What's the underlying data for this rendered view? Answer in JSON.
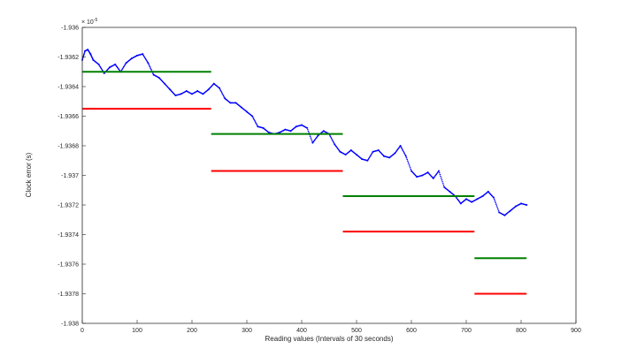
{
  "chart_data": {
    "type": "line",
    "title": "",
    "xlabel": "Reading values (Intervals of 30 seconds)",
    "ylabel": "Clock error (s)",
    "y_exponent_label": "× 10",
    "y_exponent_power": "-5",
    "xlim": [
      0,
      900
    ],
    "ylim": [
      -1.938,
      -1.936
    ],
    "y_multiplier": 1e-05,
    "grid": false,
    "legend": "none",
    "xticks": [
      "0",
      "100",
      "200",
      "300",
      "400",
      "500",
      "600",
      "700",
      "800",
      "900"
    ],
    "yticks": [
      "-1.938",
      "-1.9378",
      "-1.9376",
      "-1.9374",
      "-1.9372",
      "-1.937",
      "-1.9368",
      "-1.9366",
      "-1.9364",
      "-1.9362",
      "-1.936"
    ],
    "series": [
      {
        "style": "dots",
        "color": "#0000ff",
        "x": [
          0,
          5,
          10,
          15,
          20,
          30,
          40,
          50,
          60,
          70,
          80,
          90,
          100,
          110,
          120,
          130,
          140,
          150,
          160,
          170,
          180,
          190,
          200,
          210,
          220,
          230,
          240,
          250,
          260,
          270,
          280,
          290,
          300,
          310,
          320,
          330,
          340,
          350,
          360,
          370,
          380,
          390,
          400,
          410,
          420,
          430,
          440,
          450,
          460,
          470,
          480,
          490,
          500,
          510,
          520,
          530,
          540,
          550,
          560,
          570,
          580,
          590,
          600,
          610,
          620,
          630,
          640,
          650,
          660,
          670,
          680,
          690,
          700,
          710,
          720,
          730,
          740,
          750,
          760,
          770,
          780,
          790,
          800,
          810
        ],
        "y": [
          -1.93622,
          -1.93616,
          -1.93615,
          -1.93618,
          -1.93622,
          -1.93625,
          -1.93631,
          -1.93627,
          -1.93625,
          -1.9363,
          -1.93624,
          -1.93621,
          -1.93619,
          -1.93618,
          -1.93624,
          -1.93632,
          -1.93634,
          -1.93638,
          -1.93642,
          -1.93646,
          -1.93645,
          -1.93643,
          -1.93645,
          -1.93643,
          -1.93645,
          -1.93642,
          -1.93638,
          -1.93641,
          -1.93648,
          -1.93651,
          -1.93651,
          -1.93654,
          -1.93657,
          -1.9366,
          -1.93667,
          -1.93668,
          -1.93671,
          -1.93672,
          -1.93671,
          -1.93669,
          -1.9367,
          -1.93667,
          -1.93666,
          -1.93668,
          -1.93678,
          -1.93673,
          -1.9367,
          -1.93672,
          -1.93679,
          -1.93684,
          -1.93686,
          -1.93683,
          -1.93686,
          -1.93689,
          -1.9369,
          -1.93684,
          -1.93683,
          -1.93687,
          -1.93688,
          -1.93685,
          -1.9368,
          -1.93687,
          -1.93697,
          -1.93701,
          -1.937,
          -1.93698,
          -1.93702,
          -1.93697,
          -1.93708,
          -1.93711,
          -1.93714,
          -1.93719,
          -1.93716,
          -1.93718,
          -1.93716,
          -1.93714,
          -1.93711,
          -1.93715,
          -1.93725,
          -1.93727,
          -1.93724,
          -1.93721,
          -1.93719,
          -1.9372
        ]
      },
      {
        "style": "line",
        "color": "#008000",
        "segments": [
          {
            "x": [
              0,
              235
            ],
            "y": [
              -1.9363,
              -1.9363
            ]
          },
          {
            "x": [
              235,
              475
            ],
            "y": [
              -1.93672,
              -1.93672
            ]
          },
          {
            "x": [
              475,
              715
            ],
            "y": [
              -1.93714,
              -1.93714
            ]
          },
          {
            "x": [
              715,
              810
            ],
            "y": [
              -1.93756,
              -1.93756
            ]
          }
        ]
      },
      {
        "style": "line",
        "color": "#ff0000",
        "segments": [
          {
            "x": [
              0,
              235
            ],
            "y": [
              -1.93655,
              -1.93655
            ]
          },
          {
            "x": [
              235,
              475
            ],
            "y": [
              -1.93697,
              -1.93697
            ]
          },
          {
            "x": [
              475,
              715
            ],
            "y": [
              -1.93738,
              -1.93738
            ]
          },
          {
            "x": [
              715,
              810
            ],
            "y": [
              -1.9378,
              -1.9378
            ]
          }
        ]
      }
    ]
  }
}
